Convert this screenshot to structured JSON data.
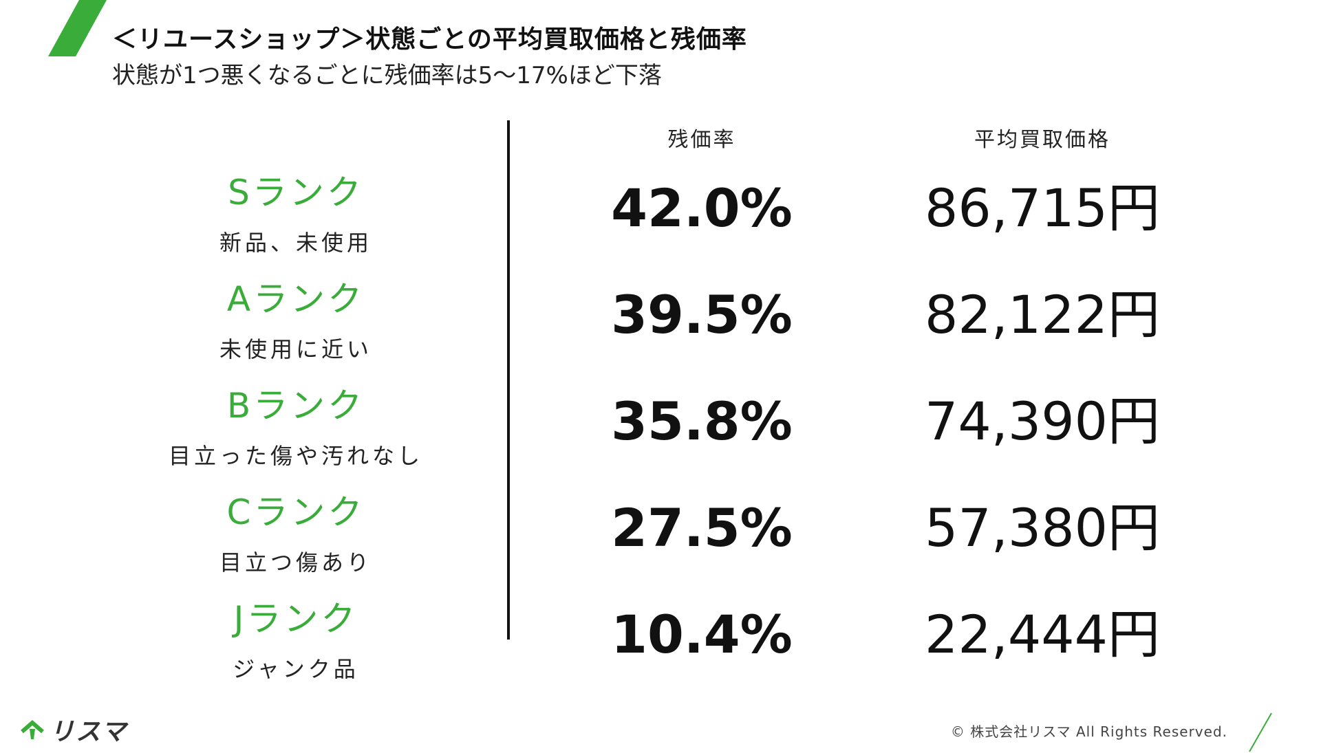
{
  "header": {
    "title": "＜リユースショップ＞状態ごとの平均買取価格と残価率",
    "subtitle": "状態が1つ悪くなるごとに残価率は5〜17%ほど下落"
  },
  "columns": {
    "rate": "残価率",
    "price": "平均買取価格"
  },
  "ranks": [
    {
      "name": "Sランク",
      "desc": "新品、未使用",
      "rate": "42.0%",
      "price": "86,715円"
    },
    {
      "name": "Aランク",
      "desc": "未使用に近い",
      "rate": "39.5%",
      "price": "82,122円"
    },
    {
      "name": "Bランク",
      "desc": "目立った傷や汚れなし",
      "rate": "35.8%",
      "price": "74,390円"
    },
    {
      "name": "Cランク",
      "desc": "目立つ傷あり",
      "rate": "27.5%",
      "price": "57,380円"
    },
    {
      "name": "Jランク",
      "desc": "ジャンク品",
      "rate": "10.4%",
      "price": "22,444円"
    }
  ],
  "footer": {
    "logo": "リスマ",
    "copyright": "© 株式会社リスマ All Rights Reserved."
  },
  "colors": {
    "accent": "#3aac3a",
    "text": "#111111"
  }
}
